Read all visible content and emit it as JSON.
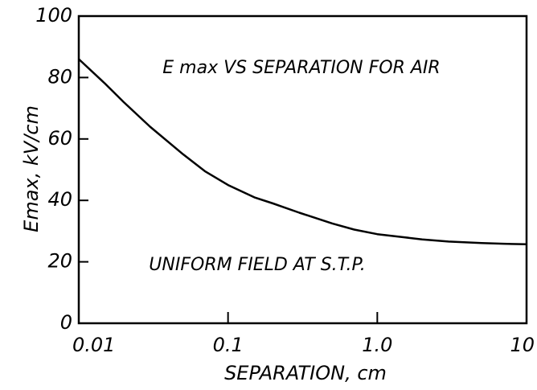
{
  "chart_data": {
    "type": "line",
    "annotations": [
      "E max VS SEPARATION FOR AIR",
      "UNIFORM FIELD AT S.T.P."
    ],
    "xlabel": "SEPARATION, cm",
    "ylabel": "Emax, kV/cm",
    "x": [
      0.01,
      0.015,
      0.02,
      0.03,
      0.05,
      0.07,
      0.1,
      0.15,
      0.2,
      0.3,
      0.5,
      0.7,
      1,
      1.5,
      2,
      3,
      5,
      7,
      10
    ],
    "values": [
      86,
      78,
      72,
      64,
      55,
      49.5,
      45,
      41,
      39,
      36,
      32.5,
      30.5,
      29,
      28,
      27.3,
      26.6,
      26.1,
      25.9,
      25.7
    ],
    "color": "#000000",
    "xscale": "log",
    "xlim": [
      0.01,
      10
    ],
    "xticks": [
      0.01,
      0.1,
      {
        "value": 1,
        "label": "1.0"
      },
      10
    ],
    "ylim": [
      0,
      100
    ],
    "yticks": [
      0,
      20,
      40,
      60,
      80,
      100
    ]
  }
}
